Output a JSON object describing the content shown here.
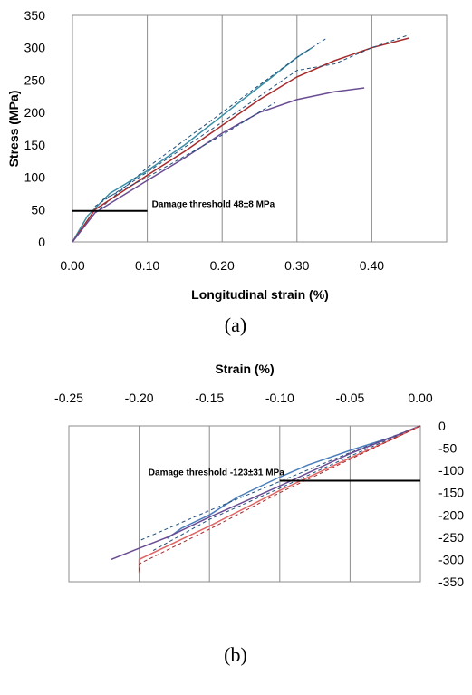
{
  "chart_data": [
    {
      "id": "a",
      "type": "line",
      "panel_label": "(a)",
      "xlabel": "Longitudinal strain (%)",
      "ylabel": "Stress (MPa)",
      "xlim": [
        0,
        0.5
      ],
      "ylim": [
        0,
        350
      ],
      "xticks": [
        "0.00",
        "0.10",
        "0.20",
        "0.30",
        "0.40"
      ],
      "yticks": [
        "0",
        "50",
        "100",
        "150",
        "200",
        "250",
        "300",
        "350"
      ],
      "grid": "vertical",
      "annotation": {
        "text": "Damage threshold 48±8 MPa",
        "y": 48,
        "x_from": 0,
        "x_to": 0.1
      },
      "series": [
        {
          "color": "#3b8ea5",
          "style": "solid",
          "points": [
            [
              0,
              0
            ],
            [
              0.02,
              40
            ],
            [
              0.05,
              75
            ],
            [
              0.1,
              110
            ],
            [
              0.15,
              150
            ],
            [
              0.2,
              195
            ],
            [
              0.25,
              240
            ],
            [
              0.3,
              285
            ],
            [
              0.32,
              300
            ]
          ]
        },
        {
          "color": "#1f4e79",
          "style": "dashed",
          "points": [
            [
              0.03,
              45
            ],
            [
              0.1,
              115
            ],
            [
              0.2,
              200
            ],
            [
              0.3,
              285
            ],
            [
              0.34,
              315
            ]
          ]
        },
        {
          "color": "#a52a2a",
          "style": "solid",
          "points": [
            [
              0,
              0
            ],
            [
              0.03,
              50
            ],
            [
              0.1,
              103
            ],
            [
              0.15,
              140
            ],
            [
              0.2,
              180
            ],
            [
              0.25,
              220
            ],
            [
              0.3,
              255
            ],
            [
              0.35,
              280
            ],
            [
              0.4,
              300
            ],
            [
              0.45,
              315
            ]
          ]
        },
        {
          "color": "#1f4e79",
          "style": "dashed",
          "points": [
            [
              0.03,
              55
            ],
            [
              0.1,
              108
            ],
            [
              0.2,
              185
            ],
            [
              0.3,
              265
            ],
            [
              0.35,
              275
            ],
            [
              0.4,
              300
            ],
            [
              0.45,
              320
            ]
          ]
        },
        {
          "color": "#6a4c93",
          "style": "solid",
          "points": [
            [
              0,
              0
            ],
            [
              0.03,
              45
            ],
            [
              0.1,
              95
            ],
            [
              0.15,
              130
            ],
            [
              0.2,
              168
            ],
            [
              0.25,
              200
            ],
            [
              0.3,
              220
            ],
            [
              0.35,
              232
            ],
            [
              0.39,
              238
            ]
          ]
        },
        {
          "color": "#1f4e79",
          "style": "dashed",
          "points": [
            [
              0.04,
              65
            ],
            [
              0.1,
              100
            ],
            [
              0.2,
              165
            ],
            [
              0.27,
              215
            ]
          ]
        }
      ]
    },
    {
      "id": "b",
      "type": "line",
      "panel_label": "(b)",
      "xlabel": "Strain (%)",
      "ylabel": "",
      "xlim": [
        -0.25,
        0
      ],
      "ylim": [
        -350,
        0
      ],
      "xticks": [
        "-0.25",
        "-0.20",
        "-0.15",
        "-0.10",
        "-0.05",
        "0.00"
      ],
      "yticks": [
        "0",
        "-50",
        "-100",
        "-150",
        "-200",
        "-250",
        "-300",
        "-350"
      ],
      "grid": "vertical",
      "annotation": {
        "text": "Damage threshold -123±31 MPa",
        "y": -123,
        "x_from": -0.1,
        "x_to": 0
      },
      "series": [
        {
          "color": "#4a7ebb",
          "style": "solid",
          "points": [
            [
              0,
              0
            ],
            [
              -0.02,
              -25
            ],
            [
              -0.05,
              -55
            ],
            [
              -0.08,
              -88
            ],
            [
              -0.1,
              -115
            ],
            [
              -0.13,
              -160
            ],
            [
              -0.15,
              -200
            ],
            [
              -0.17,
              -230
            ],
            [
              -0.18,
              -253
            ]
          ]
        },
        {
          "color": "#1f4e79",
          "style": "dashed",
          "points": [
            [
              0,
              0
            ],
            [
              -0.05,
              -60
            ],
            [
              -0.1,
              -125
            ],
            [
              -0.15,
              -190
            ],
            [
              -0.2,
              -258
            ]
          ]
        },
        {
          "color": "#6a4c93",
          "style": "solid",
          "points": [
            [
              0,
              0
            ],
            [
              -0.02,
              -25
            ],
            [
              -0.05,
              -62
            ],
            [
              -0.1,
              -135
            ],
            [
              -0.15,
              -205
            ],
            [
              -0.18,
              -250
            ],
            [
              -0.2,
              -275
            ],
            [
              -0.22,
              -300
            ]
          ]
        },
        {
          "color": "#1f4e79",
          "style": "dashed",
          "points": [
            [
              0,
              0
            ],
            [
              -0.05,
              -68
            ],
            [
              -0.1,
              -140
            ],
            [
              -0.15,
              -210
            ],
            [
              -0.19,
              -280
            ]
          ]
        },
        {
          "color": "#e06666",
          "style": "solid",
          "points": [
            [
              0,
              0
            ],
            [
              -0.02,
              -30
            ],
            [
              -0.05,
              -72
            ],
            [
              -0.1,
              -145
            ],
            [
              -0.15,
              -225
            ],
            [
              -0.2,
              -300
            ],
            [
              -0.2,
              -330
            ]
          ]
        },
        {
          "color": "#a52a2a",
          "style": "dashed",
          "points": [
            [
              0,
              0
            ],
            [
              -0.05,
              -75
            ],
            [
              -0.1,
              -150
            ],
            [
              -0.15,
              -232
            ],
            [
              -0.2,
              -310
            ],
            [
              -0.2,
              -332
            ]
          ]
        }
      ]
    }
  ]
}
